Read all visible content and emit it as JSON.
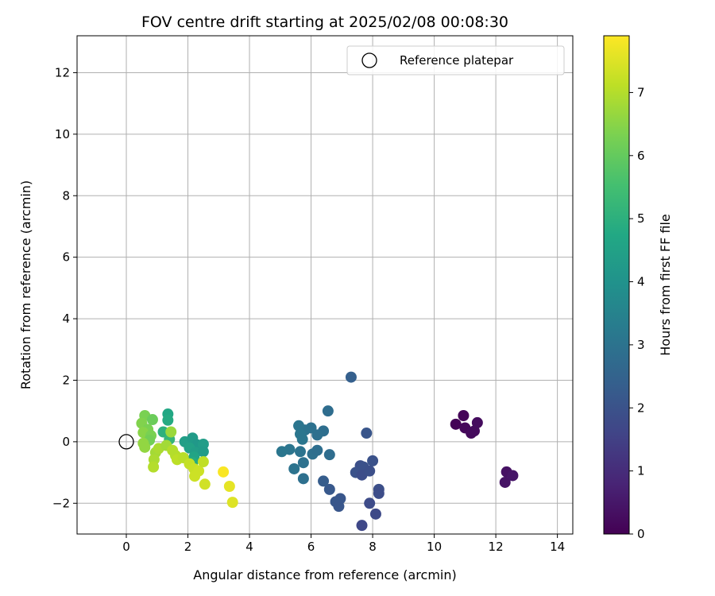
{
  "chart_data": {
    "type": "scatter",
    "title": "FOV centre drift starting at 2025/02/08 00:08:30",
    "xlabel": "Angular distance from reference (arcmin)",
    "ylabel": "Rotation from reference (arcmin)",
    "xlim": [
      -1.6,
      14.5
    ],
    "ylim": [
      -3.0,
      13.2
    ],
    "xticks": [
      0,
      2,
      4,
      6,
      8,
      10,
      12,
      14
    ],
    "yticks": [
      -2,
      0,
      2,
      4,
      6,
      8,
      10,
      12
    ],
    "grid": true,
    "legend": {
      "position": "top-right",
      "entries": [
        "Reference platepar"
      ]
    },
    "reference_point": {
      "x": 0,
      "y": 0,
      "label": "Reference platepar"
    },
    "colorbar": {
      "label": "Hours from first FF file",
      "colormap": "viridis",
      "range": [
        0,
        7.9
      ],
      "ticks": [
        0,
        1,
        2,
        3,
        4,
        5,
        6,
        7
      ]
    },
    "series": [
      {
        "points": [
          {
            "x": 10.7,
            "y": 0.57,
            "c": 0.05
          },
          {
            "x": 10.95,
            "y": 0.85,
            "c": 0.1
          },
          {
            "x": 11.0,
            "y": 0.45,
            "c": 0.15
          },
          {
            "x": 11.2,
            "y": 0.28,
            "c": 0.2
          },
          {
            "x": 11.3,
            "y": 0.35,
            "c": 0.22
          },
          {
            "x": 11.4,
            "y": 0.62,
            "c": 0.25
          },
          {
            "x": 12.35,
            "y": -0.98,
            "c": 0.35
          },
          {
            "x": 12.3,
            "y": -1.32,
            "c": 0.4
          },
          {
            "x": 12.55,
            "y": -1.1,
            "c": 0.45
          },
          {
            "x": 7.3,
            "y": 2.1,
            "c": 2.4
          },
          {
            "x": 7.8,
            "y": 0.28,
            "c": 2.1
          },
          {
            "x": 7.6,
            "y": -0.78,
            "c": 1.9
          },
          {
            "x": 7.7,
            "y": -0.82,
            "c": 1.95
          },
          {
            "x": 7.45,
            "y": -1.0,
            "c": 2.0
          },
          {
            "x": 7.65,
            "y": -1.08,
            "c": 1.85
          },
          {
            "x": 7.9,
            "y": -0.95,
            "c": 1.9
          },
          {
            "x": 8.0,
            "y": -0.62,
            "c": 2.0
          },
          {
            "x": 8.2,
            "y": -1.55,
            "c": 1.9
          },
          {
            "x": 8.2,
            "y": -1.68,
            "c": 1.85
          },
          {
            "x": 7.9,
            "y": -2.0,
            "c": 1.8
          },
          {
            "x": 8.1,
            "y": -2.35,
            "c": 1.75
          },
          {
            "x": 7.65,
            "y": -2.72,
            "c": 1.7
          },
          {
            "x": 6.95,
            "y": -1.85,
            "c": 2.1
          },
          {
            "x": 6.8,
            "y": -1.95,
            "c": 2.15
          },
          {
            "x": 6.9,
            "y": -2.1,
            "c": 2.1
          },
          {
            "x": 6.6,
            "y": -1.55,
            "c": 2.2
          },
          {
            "x": 6.4,
            "y": -1.28,
            "c": 2.3
          },
          {
            "x": 6.55,
            "y": 1.0,
            "c": 2.8
          },
          {
            "x": 6.4,
            "y": 0.35,
            "c": 2.85
          },
          {
            "x": 6.2,
            "y": 0.22,
            "c": 2.9
          },
          {
            "x": 6.0,
            "y": 0.45,
            "c": 2.95
          },
          {
            "x": 5.8,
            "y": 0.38,
            "c": 3.0
          },
          {
            "x": 5.6,
            "y": 0.52,
            "c": 3.05
          },
          {
            "x": 5.65,
            "y": 0.25,
            "c": 3.1
          },
          {
            "x": 5.72,
            "y": 0.08,
            "c": 3.1
          },
          {
            "x": 6.05,
            "y": -0.4,
            "c": 2.9
          },
          {
            "x": 6.2,
            "y": -0.28,
            "c": 2.85
          },
          {
            "x": 6.6,
            "y": -0.42,
            "c": 2.8
          },
          {
            "x": 5.65,
            "y": -0.32,
            "c": 3.0
          },
          {
            "x": 5.3,
            "y": -0.25,
            "c": 3.05
          },
          {
            "x": 5.05,
            "y": -0.32,
            "c": 3.1
          },
          {
            "x": 5.45,
            "y": -0.88,
            "c": 3.0
          },
          {
            "x": 5.75,
            "y": -0.68,
            "c": 2.95
          },
          {
            "x": 5.75,
            "y": -1.2,
            "c": 2.9
          },
          {
            "x": 1.35,
            "y": 0.9,
            "c": 4.7
          },
          {
            "x": 1.35,
            "y": 0.7,
            "c": 4.8
          },
          {
            "x": 1.2,
            "y": 0.32,
            "c": 5.0
          },
          {
            "x": 1.9,
            "y": 0.0,
            "c": 4.4
          },
          {
            "x": 2.15,
            "y": 0.12,
            "c": 4.3
          },
          {
            "x": 2.3,
            "y": -0.1,
            "c": 4.2
          },
          {
            "x": 2.05,
            "y": -0.2,
            "c": 4.5
          },
          {
            "x": 2.25,
            "y": -0.35,
            "c": 4.4
          },
          {
            "x": 2.5,
            "y": -0.08,
            "c": 4.35
          },
          {
            "x": 2.5,
            "y": -0.32,
            "c": 4.3
          },
          {
            "x": 2.2,
            "y": -0.5,
            "c": 4.6
          },
          {
            "x": 2.15,
            "y": -0.68,
            "c": 4.8
          },
          {
            "x": 1.4,
            "y": 0.08,
            "c": 5.2
          },
          {
            "x": 0.6,
            "y": 0.85,
            "c": 6.3
          },
          {
            "x": 0.85,
            "y": 0.72,
            "c": 6.1
          },
          {
            "x": 0.5,
            "y": 0.6,
            "c": 6.4
          },
          {
            "x": 0.7,
            "y": 0.4,
            "c": 6.3
          },
          {
            "x": 0.55,
            "y": 0.3,
            "c": 6.5
          },
          {
            "x": 0.8,
            "y": 0.2,
            "c": 6.3
          },
          {
            "x": 0.75,
            "y": 0.05,
            "c": 6.2
          },
          {
            "x": 0.55,
            "y": -0.05,
            "c": 6.6
          },
          {
            "x": 0.6,
            "y": -0.18,
            "c": 6.6
          },
          {
            "x": 0.95,
            "y": -0.35,
            "c": 6.8
          },
          {
            "x": 1.05,
            "y": -0.22,
            "c": 6.9
          },
          {
            "x": 0.9,
            "y": -0.58,
            "c": 6.9
          },
          {
            "x": 0.88,
            "y": -0.82,
            "c": 7.0
          },
          {
            "x": 1.45,
            "y": 0.32,
            "c": 6.7
          },
          {
            "x": 1.3,
            "y": -0.12,
            "c": 6.8
          },
          {
            "x": 1.5,
            "y": -0.28,
            "c": 7.0
          },
          {
            "x": 1.6,
            "y": -0.45,
            "c": 7.0
          },
          {
            "x": 1.65,
            "y": -0.58,
            "c": 7.1
          },
          {
            "x": 1.85,
            "y": -0.52,
            "c": 7.05
          },
          {
            "x": 2.05,
            "y": -0.72,
            "c": 7.2
          },
          {
            "x": 2.2,
            "y": -0.88,
            "c": 7.25
          },
          {
            "x": 2.35,
            "y": -0.95,
            "c": 7.3
          },
          {
            "x": 2.22,
            "y": -1.12,
            "c": 7.3
          },
          {
            "x": 2.5,
            "y": -0.65,
            "c": 7.15
          },
          {
            "x": 2.55,
            "y": -1.38,
            "c": 7.35
          },
          {
            "x": 3.15,
            "y": -0.98,
            "c": 7.85
          },
          {
            "x": 3.35,
            "y": -1.45,
            "c": 7.6
          },
          {
            "x": 3.45,
            "y": -1.97,
            "c": 7.5
          }
        ]
      }
    ]
  }
}
